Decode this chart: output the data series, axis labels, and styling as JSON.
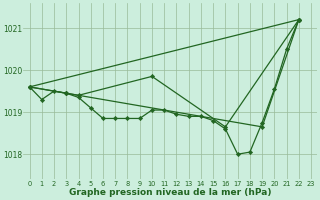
{
  "background_color": "#cceedd",
  "grid_color": "#99bb99",
  "line_color": "#226622",
  "xlabel": "Graphe pression niveau de la mer (hPa)",
  "xlim": [
    -0.5,
    23.5
  ],
  "ylim": [
    1017.4,
    1021.6
  ],
  "yticks": [
    1018,
    1019,
    1020,
    1021
  ],
  "xticks": [
    0,
    1,
    2,
    3,
    4,
    5,
    6,
    7,
    8,
    9,
    10,
    11,
    12,
    13,
    14,
    15,
    16,
    17,
    18,
    19,
    20,
    21,
    22,
    23
  ],
  "series_main": {
    "x": [
      0,
      1,
      2,
      3,
      4,
      5,
      6,
      7,
      8,
      9,
      10,
      11,
      12,
      13,
      14,
      15,
      16,
      17,
      18,
      19,
      20,
      21,
      22
    ],
    "y": [
      1019.6,
      1019.3,
      1019.5,
      1019.45,
      1019.35,
      1019.1,
      1018.85,
      1018.85,
      1018.85,
      1018.85,
      1019.05,
      1019.05,
      1018.95,
      1018.9,
      1018.9,
      1018.8,
      1018.6,
      1018.0,
      1018.05,
      1018.75,
      1019.55,
      1020.5,
      1021.2
    ]
  },
  "series_medium": {
    "x": [
      0,
      3,
      4,
      10,
      16,
      22
    ],
    "y": [
      1019.6,
      1019.45,
      1019.4,
      1019.85,
      1018.65,
      1021.2
    ]
  },
  "series_straight": {
    "x": [
      0,
      3,
      19,
      22
    ],
    "y": [
      1019.6,
      1019.45,
      1018.65,
      1021.2
    ]
  },
  "series_steep": {
    "x": [
      0,
      22
    ],
    "y": [
      1019.6,
      1021.2
    ]
  }
}
